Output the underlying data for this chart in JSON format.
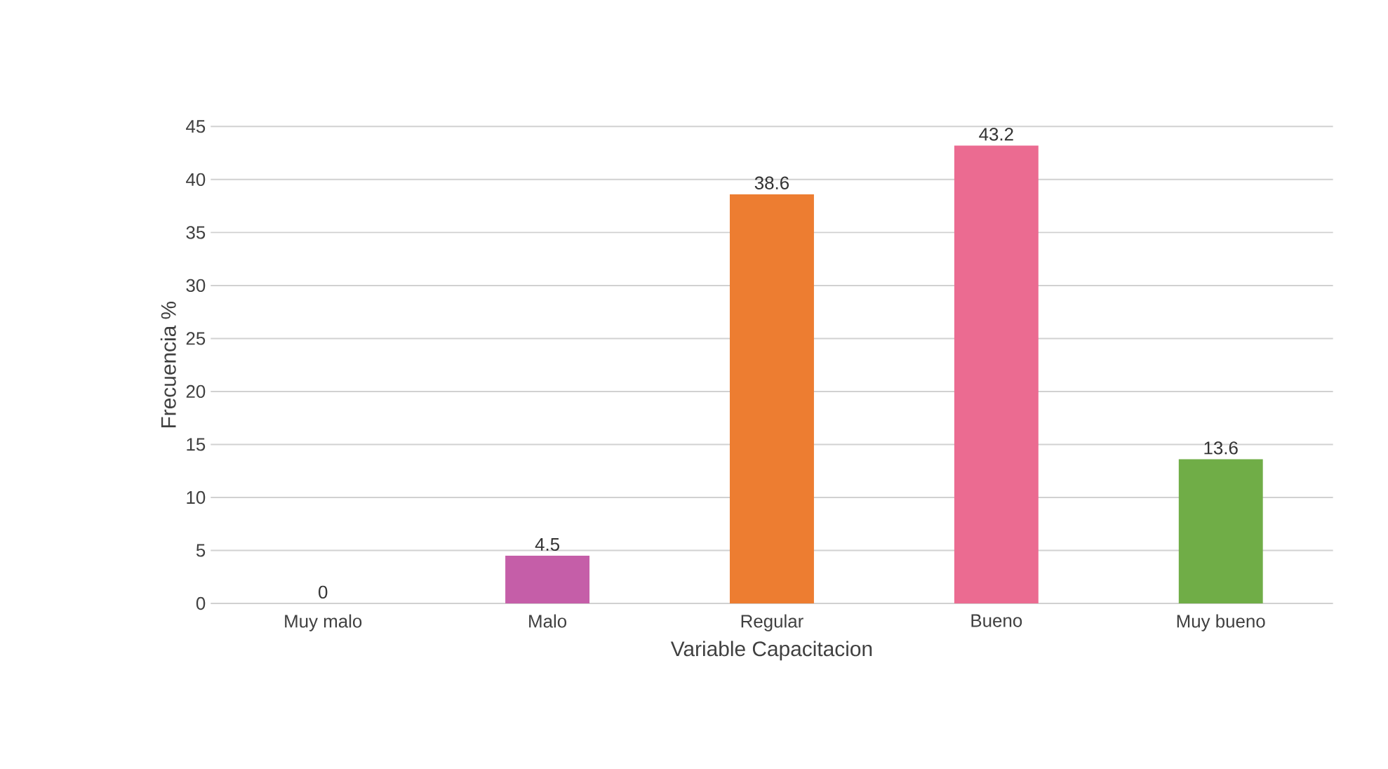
{
  "chart_data": {
    "type": "bar",
    "xlabel": "Variable Capacitacion",
    "ylabel": "Frecuencia %",
    "categories": [
      "Muy malo",
      "Malo",
      "Regular",
      "Bueno",
      "Muy bueno"
    ],
    "values": [
      0,
      4.5,
      38.6,
      43.2,
      13.6
    ],
    "colors": [
      "#c89a00",
      "#c55ea8",
      "#ed7d31",
      "#eb6b91",
      "#70ad47"
    ],
    "ylim": [
      0,
      45
    ],
    "yticks": [
      0,
      5,
      10,
      15,
      20,
      25,
      30,
      35,
      40,
      45
    ],
    "grid": "y",
    "data_labels": true
  }
}
